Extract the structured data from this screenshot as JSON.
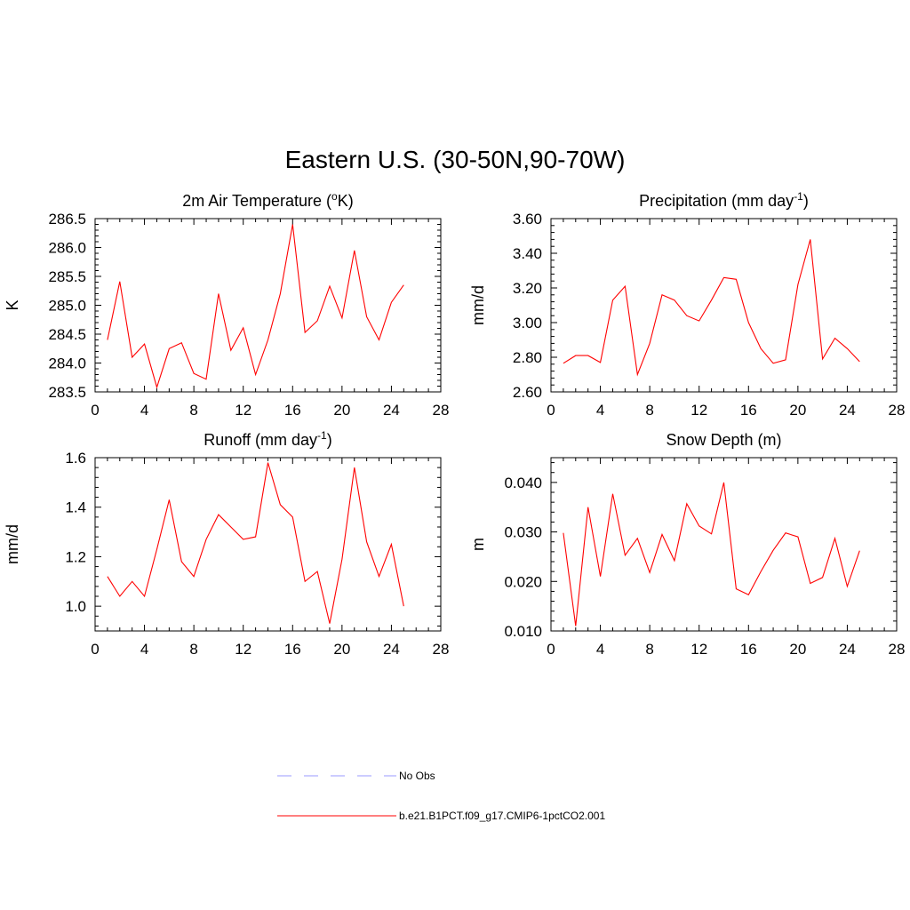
{
  "title": "Eastern U.S. (30-50N,90-70W)",
  "colors": {
    "model_line": "#ff0000",
    "obs_line": "#9999ff",
    "axes": "#000000"
  },
  "legend": {
    "entries": [
      {
        "label": "No Obs",
        "style": "dashed",
        "color": "#9999ff"
      },
      {
        "label": "b.e21.B1PCT.f09_g17.CMIP6-1pctCO2.001",
        "style": "solid",
        "color": "#ff0000"
      }
    ]
  },
  "chart_data": [
    {
      "type": "line",
      "title": "2m Air Temperature (°K)",
      "title_parts": [
        "2m Air Temperature (",
        "o",
        "K)"
      ],
      "xlabel": "",
      "ylabel": "K",
      "xlim": [
        0,
        28
      ],
      "ylim": [
        283.5,
        286.5
      ],
      "xticks": [
        "0",
        "4",
        "8",
        "12",
        "16",
        "20",
        "24",
        "28"
      ],
      "yticks": [
        "283.5",
        "284.0",
        "284.5",
        "285.0",
        "285.5",
        "286.0",
        "286.5"
      ],
      "x": [
        1,
        2,
        3,
        4,
        5,
        6,
        7,
        8,
        9,
        10,
        11,
        12,
        13,
        14,
        15,
        16,
        17,
        18,
        19,
        20,
        21,
        22,
        23,
        24,
        25
      ],
      "series": [
        {
          "name": "b.e21.B1PCT.f09_g17.CMIP6-1pctCO2.001",
          "values": [
            284.4,
            285.41,
            284.1,
            284.33,
            283.58,
            284.25,
            284.35,
            283.82,
            283.72,
            285.2,
            284.22,
            284.61,
            283.8,
            284.4,
            285.2,
            286.4,
            284.53,
            284.73,
            285.33,
            284.78,
            285.95,
            284.8,
            284.4,
            285.05,
            285.35
          ]
        }
      ]
    },
    {
      "type": "line",
      "title": "Precipitation (mm day-1)",
      "title_parts": [
        "Precipitation (mm day",
        "-1",
        ")"
      ],
      "xlabel": "",
      "ylabel": "mm/d",
      "xlim": [
        0,
        28
      ],
      "ylim": [
        2.6,
        3.6
      ],
      "xticks": [
        "0",
        "4",
        "8",
        "12",
        "16",
        "20",
        "24",
        "28"
      ],
      "yticks": [
        "2.60",
        "2.80",
        "3.00",
        "3.20",
        "3.40",
        "3.60"
      ],
      "x": [
        1,
        2,
        3,
        4,
        5,
        6,
        7,
        8,
        9,
        10,
        11,
        12,
        13,
        14,
        15,
        16,
        17,
        18,
        19,
        20,
        21,
        22,
        23,
        24,
        25
      ],
      "series": [
        {
          "name": "b.e21.B1PCT.f09_g17.CMIP6-1pctCO2.001",
          "values": [
            2.765,
            2.81,
            2.81,
            2.77,
            3.13,
            3.21,
            2.7,
            2.88,
            3.16,
            3.13,
            3.04,
            3.01,
            3.13,
            3.26,
            3.25,
            3.0,
            2.85,
            2.765,
            2.785,
            3.22,
            3.48,
            2.79,
            2.91,
            2.85,
            2.775
          ]
        }
      ]
    },
    {
      "type": "line",
      "title": "Runoff (mm day-1)",
      "title_parts": [
        "Runoff (mm day",
        "-1",
        ")"
      ],
      "xlabel": "",
      "ylabel": "mm/d",
      "xlim": [
        0,
        28
      ],
      "ylim": [
        0.9,
        1.6
      ],
      "xticks": [
        "0",
        "4",
        "8",
        "12",
        "16",
        "20",
        "24",
        "28"
      ],
      "yticks": [
        "1.0",
        "1.2",
        "1.4",
        "1.6"
      ],
      "x": [
        1,
        2,
        3,
        4,
        5,
        6,
        7,
        8,
        9,
        10,
        11,
        12,
        13,
        14,
        15,
        16,
        17,
        18,
        19,
        20,
        21,
        22,
        23,
        24,
        25
      ],
      "series": [
        {
          "name": "b.e21.B1PCT.f09_g17.CMIP6-1pctCO2.001",
          "values": [
            1.12,
            1.04,
            1.1,
            1.04,
            1.23,
            1.43,
            1.18,
            1.12,
            1.27,
            1.37,
            1.32,
            1.27,
            1.28,
            1.58,
            1.41,
            1.36,
            1.1,
            1.14,
            0.93,
            1.19,
            1.56,
            1.26,
            1.12,
            1.25,
            1.0
          ]
        }
      ]
    },
    {
      "type": "line",
      "title": "Snow Depth (m)",
      "title_parts": [
        "Snow Depth (m)",
        "",
        ""
      ],
      "xlabel": "",
      "ylabel": "m",
      "xlim": [
        0,
        28
      ],
      "ylim": [
        0.01,
        0.045
      ],
      "xticks": [
        "0",
        "4",
        "8",
        "12",
        "16",
        "20",
        "24",
        "28"
      ],
      "yticks": [
        "0.010",
        "0.020",
        "0.030",
        "0.040"
      ],
      "x": [
        1,
        2,
        3,
        4,
        5,
        6,
        7,
        8,
        9,
        10,
        11,
        12,
        13,
        14,
        15,
        16,
        17,
        18,
        19,
        20,
        21,
        22,
        23,
        24,
        25
      ],
      "series": [
        {
          "name": "b.e21.B1PCT.f09_g17.CMIP6-1pctCO2.001",
          "values": [
            0.0298,
            0.011,
            0.035,
            0.021,
            0.0377,
            0.0253,
            0.0287,
            0.0218,
            0.0295,
            0.0242,
            0.0357,
            0.0312,
            0.0296,
            0.04,
            0.0185,
            0.0173,
            0.022,
            0.0263,
            0.0298,
            0.029,
            0.0196,
            0.0208,
            0.0287,
            0.019,
            0.0262
          ]
        }
      ]
    }
  ]
}
